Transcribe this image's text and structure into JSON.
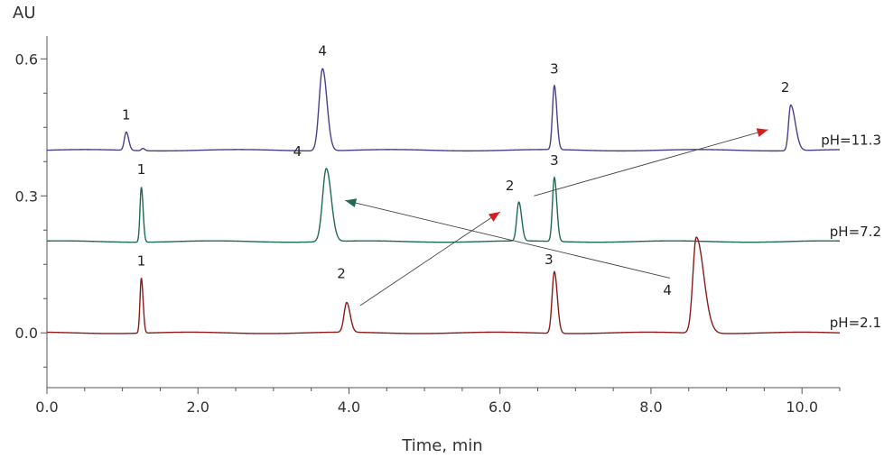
{
  "chart_data": {
    "type": "line",
    "title": "",
    "xlabel": "Time, min",
    "ylabel": "AU",
    "xlim": [
      0.0,
      10.5
    ],
    "ylim": [
      -0.12,
      0.65
    ],
    "x_ticks": [
      "0.0",
      "2.0",
      "4.0",
      "6.0",
      "8.0",
      "10.0"
    ],
    "y_ticks": [
      "0.0",
      "0.3",
      "0.6"
    ],
    "grid": false,
    "series": [
      {
        "name": "pH=11.3",
        "color": "#4a3f8c",
        "baseline": 0.4,
        "peaks": [
          {
            "label": "1",
            "time": 1.05,
            "height": 0.04,
            "width": 0.025
          },
          {
            "label": "",
            "time": 1.27,
            "height": 0.005,
            "width": 0.02
          },
          {
            "label": "4",
            "time": 3.65,
            "height": 0.18,
            "width": 0.045
          },
          {
            "label": "3",
            "time": 6.72,
            "height": 0.14,
            "width": 0.025
          },
          {
            "label": "2",
            "time": 9.85,
            "height": 0.1,
            "width": 0.028
          }
        ]
      },
      {
        "name": "pH=7.2",
        "color": "#1e6b4e",
        "baseline": 0.2,
        "peaks": [
          {
            "label": "1",
            "time": 1.25,
            "height": 0.12,
            "width": 0.018
          },
          {
            "label": "4",
            "time": 3.7,
            "height": 0.16,
            "width": 0.05
          },
          {
            "label": "2",
            "time": 6.25,
            "height": 0.085,
            "width": 0.028
          },
          {
            "label": "3",
            "time": 6.72,
            "height": 0.14,
            "width": 0.025
          }
        ]
      },
      {
        "name": "pH=2.1",
        "color": "#8b1a1a",
        "baseline": 0.0,
        "peaks": [
          {
            "label": "1",
            "time": 1.25,
            "height": 0.12,
            "width": 0.018
          },
          {
            "label": "2",
            "time": 3.97,
            "height": 0.065,
            "width": 0.035
          },
          {
            "label": "3",
            "time": 6.72,
            "height": 0.135,
            "width": 0.03
          },
          {
            "label": "4",
            "time": 8.6,
            "height": 0.21,
            "width": 0.045
          }
        ]
      }
    ],
    "arrows": [
      {
        "from": [
          4.15,
          0.06
        ],
        "to": [
          6.0,
          0.265
        ],
        "head_color": "#d21f1f",
        "line_color": "#444444"
      },
      {
        "from": [
          6.45,
          0.3
        ],
        "to": [
          9.55,
          0.445
        ],
        "head_color": "#d21f1f",
        "line_color": "#444444"
      },
      {
        "from": [
          8.25,
          0.12
        ],
        "to": [
          3.95,
          0.29
        ],
        "head_color": "#1e6b4e",
        "line_color": "#444444"
      }
    ]
  }
}
